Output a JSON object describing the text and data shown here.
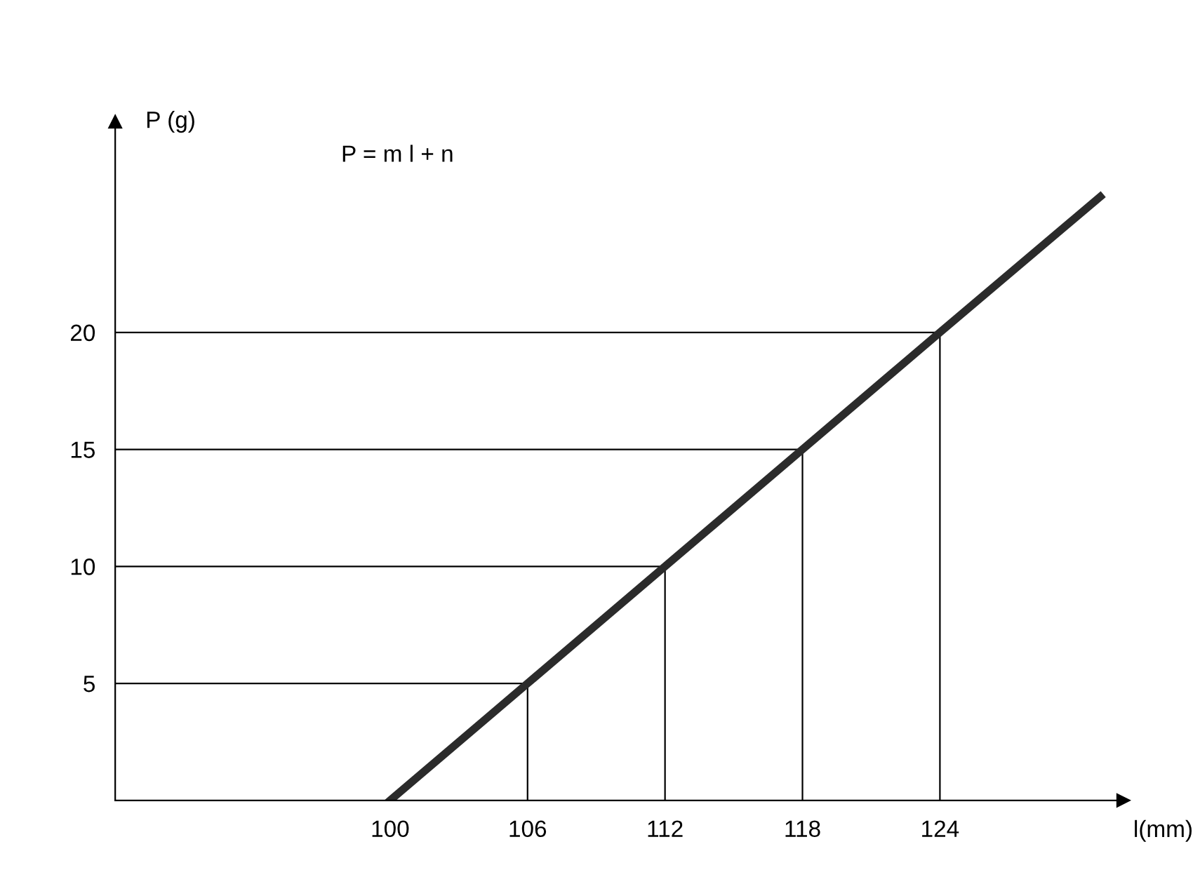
{
  "chart_data": {
    "type": "line",
    "ylabel": "P (g)",
    "xlabel": "l(mm)",
    "annotations": [
      "P = m l + n"
    ],
    "x": [
      100,
      106,
      112,
      118,
      124,
      131
    ],
    "series": [
      {
        "color": "#2b2b2b",
        "values": [
          0,
          5,
          10,
          15,
          20,
          25.8
        ]
      }
    ],
    "xlim": [
      88,
      132
    ],
    "ylim": [
      0,
      29
    ],
    "xticks": [
      100,
      106,
      112,
      118,
      124
    ],
    "yticks": [
      5,
      10,
      15,
      20
    ],
    "ref_lines": [
      {
        "axis": "y",
        "value": 5
      },
      {
        "axis": "y",
        "value": 10
      },
      {
        "axis": "y",
        "value": 15
      },
      {
        "axis": "y",
        "value": 20
      },
      {
        "axis": "x",
        "value": 106
      },
      {
        "axis": "x",
        "value": 112
      },
      {
        "axis": "x",
        "value": 118
      },
      {
        "axis": "x",
        "value": 124
      }
    ],
    "grid": false,
    "legend": false
  }
}
